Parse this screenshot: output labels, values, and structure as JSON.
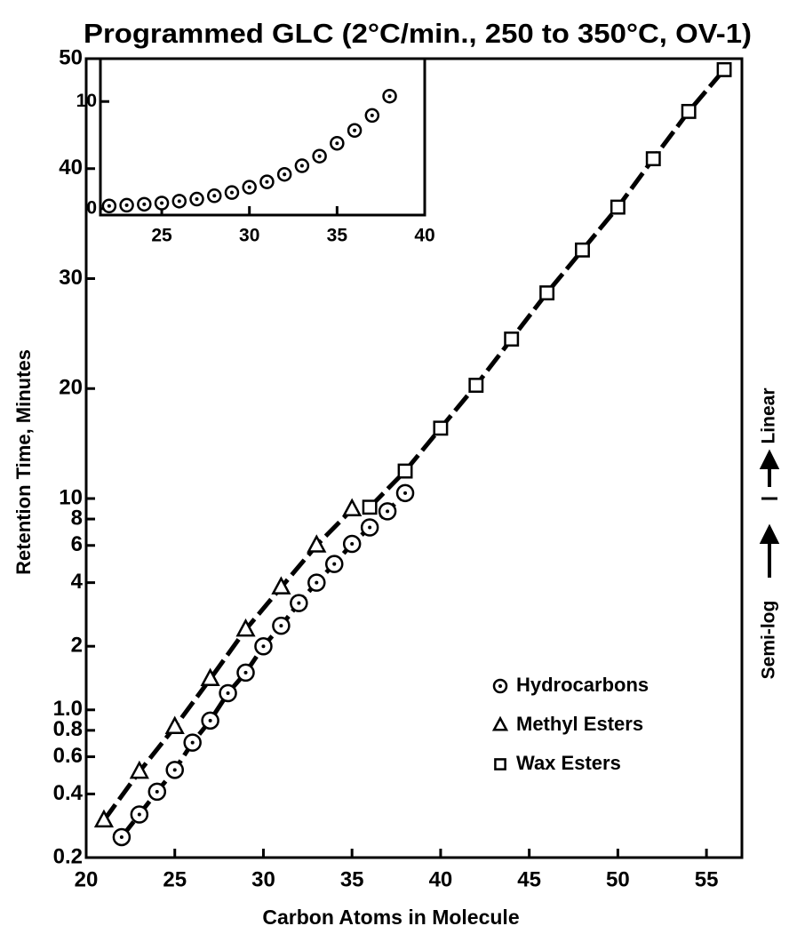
{
  "chart_data": [
    {
      "type": "line",
      "title": "Programmed GLC (2°C/min., 250 to 350°C, OV-1)",
      "x_label": "Carbon Atoms in Molecule",
      "y_label": "Retention Time, Minutes",
      "right_annotation": {
        "lower": "Semi-log",
        "upper": "Linear"
      },
      "xlim": [
        20,
        57
      ],
      "xticks": [
        20,
        25,
        30,
        35,
        40,
        45,
        50,
        55
      ],
      "ylim": [
        0.2,
        50
      ],
      "log_below": 10,
      "yticks": [
        0.2,
        0.4,
        0.6,
        0.8,
        {
          "value": 1,
          "label": "1.0"
        },
        2,
        4,
        6,
        8,
        10,
        20,
        30,
        40,
        50
      ],
      "line_style": "dashed",
      "legend": "lower right",
      "series": [
        {
          "name": "Hydrocarbons",
          "color": "#000",
          "marker": "circle-dot",
          "x": [
            22,
            23,
            24,
            25,
            26,
            27,
            28,
            29,
            30,
            31,
            32,
            33,
            34,
            35,
            36,
            37,
            38
          ],
          "values": [
            0.25,
            0.32,
            0.41,
            0.52,
            0.7,
            0.89,
            1.2,
            1.5,
            2.0,
            2.5,
            3.2,
            4.0,
            4.9,
            6.1,
            7.3,
            8.7,
            10.5
          ]
        },
        {
          "name": "Methyl Esters",
          "color": "#000",
          "marker": "triangle",
          "x": [
            21,
            23,
            25,
            27,
            29,
            31,
            33,
            35
          ],
          "values": [
            0.3,
            0.51,
            0.83,
            1.4,
            2.4,
            3.8,
            6.0,
            8.9
          ]
        },
        {
          "name": "Wax Esters",
          "color": "#000",
          "marker": "square",
          "x": [
            36,
            38,
            40,
            42,
            44,
            46,
            48,
            50,
            52,
            54,
            56
          ],
          "values": [
            9.1,
            12.5,
            16.4,
            20.3,
            24.5,
            28.7,
            32.6,
            36.5,
            40.9,
            45.2,
            49.0
          ]
        }
      ]
    },
    {
      "type": "scatter",
      "xlim": [
        21.5,
        40
      ],
      "xticks": [
        25,
        30,
        35,
        40
      ],
      "ylim": [
        -0.6,
        14
      ],
      "yticks": [
        0,
        10
      ],
      "series": [
        {
          "name": "Hydrocarbons",
          "color": "#000",
          "marker": "circle-dot",
          "x": [
            22,
            23,
            24,
            25,
            26,
            27,
            28,
            29,
            30,
            31,
            32,
            33,
            34,
            35,
            36,
            37,
            38
          ],
          "values": [
            0.25,
            0.32,
            0.41,
            0.52,
            0.7,
            0.89,
            1.2,
            1.5,
            2.0,
            2.5,
            3.2,
            4.0,
            4.9,
            6.1,
            7.3,
            8.7,
            10.5
          ]
        }
      ]
    }
  ]
}
